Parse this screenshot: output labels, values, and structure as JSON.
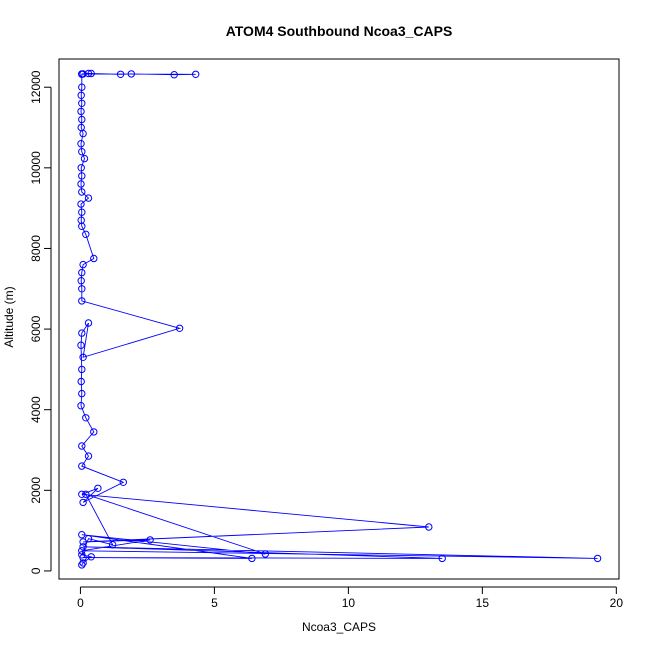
{
  "chart_data": {
    "type": "line",
    "title": "ATOM4 Southbound Ncoa3_CAPS",
    "xlabel": "Ncoa3_CAPS",
    "ylabel": "Altitude (m)",
    "xlim": [
      -0.8,
      20.1
    ],
    "ylim": [
      -200,
      12700
    ],
    "x_ticks": [
      0,
      5,
      10,
      15,
      20
    ],
    "x_tick_labels": [
      "0",
      "5",
      "10",
      "15",
      "20"
    ],
    "y_ticks": [
      0,
      2000,
      4000,
      6000,
      8000,
      10000,
      12000
    ],
    "y_tick_labels": [
      "0",
      "2000",
      "4000",
      "6000",
      "8000",
      "10000",
      "12000"
    ],
    "grid": false,
    "series": [
      {
        "color": "#0000ff",
        "marker": "open-circle",
        "points": [
          [
            0.05,
            12330
          ],
          [
            0.3,
            12340
          ],
          [
            1.5,
            12320
          ],
          [
            1.9,
            12330
          ],
          [
            3.5,
            12310
          ],
          [
            4.3,
            12320
          ],
          [
            0.1,
            12330
          ],
          [
            0.4,
            12340
          ],
          [
            0.05,
            12320
          ],
          [
            0.05,
            12000
          ],
          [
            0.03,
            11800
          ],
          [
            0.05,
            11600
          ],
          [
            0.02,
            11400
          ],
          [
            0.05,
            11200
          ],
          [
            0.03,
            11000
          ],
          [
            0.1,
            10850
          ],
          [
            0.02,
            10600
          ],
          [
            0.05,
            10400
          ],
          [
            0.15,
            10230
          ],
          [
            0.03,
            10000
          ],
          [
            0.05,
            9800
          ],
          [
            0.02,
            9600
          ],
          [
            0.05,
            9400
          ],
          [
            0.3,
            9250
          ],
          [
            0.02,
            9100
          ],
          [
            0.05,
            8900
          ],
          [
            0.03,
            8700
          ],
          [
            0.05,
            8550
          ],
          [
            0.2,
            8350
          ],
          [
            0.5,
            7750
          ],
          [
            0.1,
            7600
          ],
          [
            0.05,
            7400
          ],
          [
            0.03,
            7200
          ],
          [
            0.05,
            7000
          ],
          [
            0.05,
            6700
          ],
          [
            3.7,
            6020
          ],
          [
            0.1,
            5300
          ],
          [
            0.3,
            6150
          ],
          [
            0.05,
            5900
          ],
          [
            0.02,
            5600
          ],
          [
            0.05,
            5000
          ],
          [
            0.03,
            4700
          ],
          [
            0.05,
            4400
          ],
          [
            0.02,
            4100
          ],
          [
            0.2,
            3800
          ],
          [
            0.5,
            3450
          ],
          [
            0.05,
            3100
          ],
          [
            0.3,
            2850
          ],
          [
            0.05,
            2600
          ],
          [
            1.6,
            2200
          ],
          [
            0.1,
            1700
          ],
          [
            0.65,
            2050
          ],
          [
            0.05,
            1900
          ],
          [
            13.0,
            1090
          ],
          [
            0.1,
            720
          ],
          [
            2.6,
            770
          ],
          [
            0.05,
            500
          ],
          [
            19.3,
            310
          ],
          [
            0.1,
            600
          ],
          [
            13.5,
            310
          ],
          [
            0.1,
            330
          ],
          [
            6.4,
            310
          ],
          [
            0.05,
            900
          ],
          [
            6.9,
            420
          ],
          [
            0.2,
            1900
          ],
          [
            1.2,
            650
          ],
          [
            0.3,
            800
          ],
          [
            0.05,
            400
          ],
          [
            0.4,
            350
          ],
          [
            0.1,
            200
          ],
          [
            0.05,
            150
          ]
        ]
      }
    ]
  }
}
